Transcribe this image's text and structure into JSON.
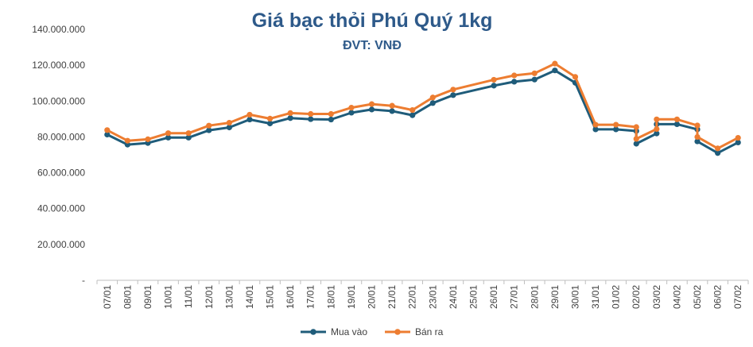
{
  "chart_data": {
    "type": "line",
    "title": "Giá bạc thỏi Phú Quý 1kg",
    "subtitle": "ĐVT: VNĐ",
    "ylim": [
      0,
      140000000
    ],
    "yticks": [
      "-",
      "20.000.000",
      "40.000.000",
      "60.000.000",
      "80.000.000",
      "100.000.000",
      "120.000.000",
      "140.000.000"
    ],
    "grid": false,
    "legend": "bottom",
    "x_labels": [
      "07/01",
      "08/01",
      "09/01",
      "10/01",
      "11/01",
      "12/01",
      "13/01",
      "14/01",
      "15/01",
      "16/01",
      "17/01",
      "18/01",
      "19/01",
      "20/01",
      "21/01",
      "22/01",
      "23/01",
      "24/01",
      "25/01",
      "26/01",
      "27/01",
      "28/01",
      "29/01",
      "30/01",
      "31/01",
      "01/02",
      "02/02",
      "03/02",
      "04/02",
      "05/02",
      "06/02",
      "07/02"
    ],
    "series": [
      {
        "name": "Mua vào",
        "color": "#1F5C7A",
        "points": [
          {
            "i": 0.5,
            "y": 81300000
          },
          {
            "i": 1.5,
            "y": 75700000
          },
          {
            "i": 2.5,
            "y": 76600000
          },
          {
            "i": 3.5,
            "y": 79600000
          },
          {
            "i": 4.5,
            "y": 79600000
          },
          {
            "i": 5.5,
            "y": 83700000
          },
          {
            "i": 6.5,
            "y": 85300000
          },
          {
            "i": 7.5,
            "y": 89700000
          },
          {
            "i": 8.5,
            "y": 87500000
          },
          {
            "i": 9.5,
            "y": 90500000
          },
          {
            "i": 10.5,
            "y": 89900000
          },
          {
            "i": 11.5,
            "y": 89700000
          },
          {
            "i": 12.5,
            "y": 93500000
          },
          {
            "i": 13.5,
            "y": 95300000
          },
          {
            "i": 14.5,
            "y": 94400000
          },
          {
            "i": 15.5,
            "y": 92100000
          },
          {
            "i": 16.5,
            "y": 98900000
          },
          {
            "i": 17.5,
            "y": 103300000
          },
          {
            "i": 19.5,
            "y": 108600000
          },
          {
            "i": 20.5,
            "y": 110800000
          },
          {
            "i": 21.5,
            "y": 112000000
          },
          {
            "i": 22.5,
            "y": 117100000
          },
          {
            "i": 23.5,
            "y": 110200000
          },
          {
            "i": 24.5,
            "y": 84200000
          },
          {
            "i": 25.5,
            "y": 84200000
          },
          {
            "i": 26.5,
            "y": 83300000
          },
          {
            "i": 26.5,
            "y": 76200000
          },
          {
            "i": 27.5,
            "y": 81900000
          },
          {
            "i": 27.5,
            "y": 87100000
          },
          {
            "i": 28.5,
            "y": 87100000
          },
          {
            "i": 29.5,
            "y": 84200000
          },
          {
            "i": 29.5,
            "y": 77500000
          },
          {
            "i": 30.5,
            "y": 71000000
          },
          {
            "i": 31.5,
            "y": 76900000
          }
        ]
      },
      {
        "name": "Bán ra",
        "color": "#ED7D31",
        "points": [
          {
            "i": 0.5,
            "y": 83800000
          },
          {
            "i": 1.5,
            "y": 77900000
          },
          {
            "i": 2.5,
            "y": 78700000
          },
          {
            "i": 3.5,
            "y": 82100000
          },
          {
            "i": 4.5,
            "y": 82100000
          },
          {
            "i": 5.5,
            "y": 86300000
          },
          {
            "i": 6.5,
            "y": 87900000
          },
          {
            "i": 7.5,
            "y": 92400000
          },
          {
            "i": 8.5,
            "y": 90200000
          },
          {
            "i": 9.5,
            "y": 93300000
          },
          {
            "i": 10.5,
            "y": 92800000
          },
          {
            "i": 11.5,
            "y": 92800000
          },
          {
            "i": 12.5,
            "y": 96300000
          },
          {
            "i": 13.5,
            "y": 98300000
          },
          {
            "i": 14.5,
            "y": 97400000
          },
          {
            "i": 15.5,
            "y": 95000000
          },
          {
            "i": 16.5,
            "y": 102000000
          },
          {
            "i": 17.5,
            "y": 106400000
          },
          {
            "i": 19.5,
            "y": 111900000
          },
          {
            "i": 20.5,
            "y": 114300000
          },
          {
            "i": 21.5,
            "y": 115500000
          },
          {
            "i": 22.5,
            "y": 120900000
          },
          {
            "i": 23.5,
            "y": 113500000
          },
          {
            "i": 24.5,
            "y": 86800000
          },
          {
            "i": 25.5,
            "y": 86800000
          },
          {
            "i": 26.5,
            "y": 85500000
          },
          {
            "i": 26.5,
            "y": 78900000
          },
          {
            "i": 27.5,
            "y": 84400000
          },
          {
            "i": 27.5,
            "y": 89800000
          },
          {
            "i": 28.5,
            "y": 89800000
          },
          {
            "i": 29.5,
            "y": 86400000
          },
          {
            "i": 29.5,
            "y": 80000000
          },
          {
            "i": 30.5,
            "y": 73600000
          },
          {
            "i": 31.5,
            "y": 79500000
          }
        ]
      }
    ]
  }
}
